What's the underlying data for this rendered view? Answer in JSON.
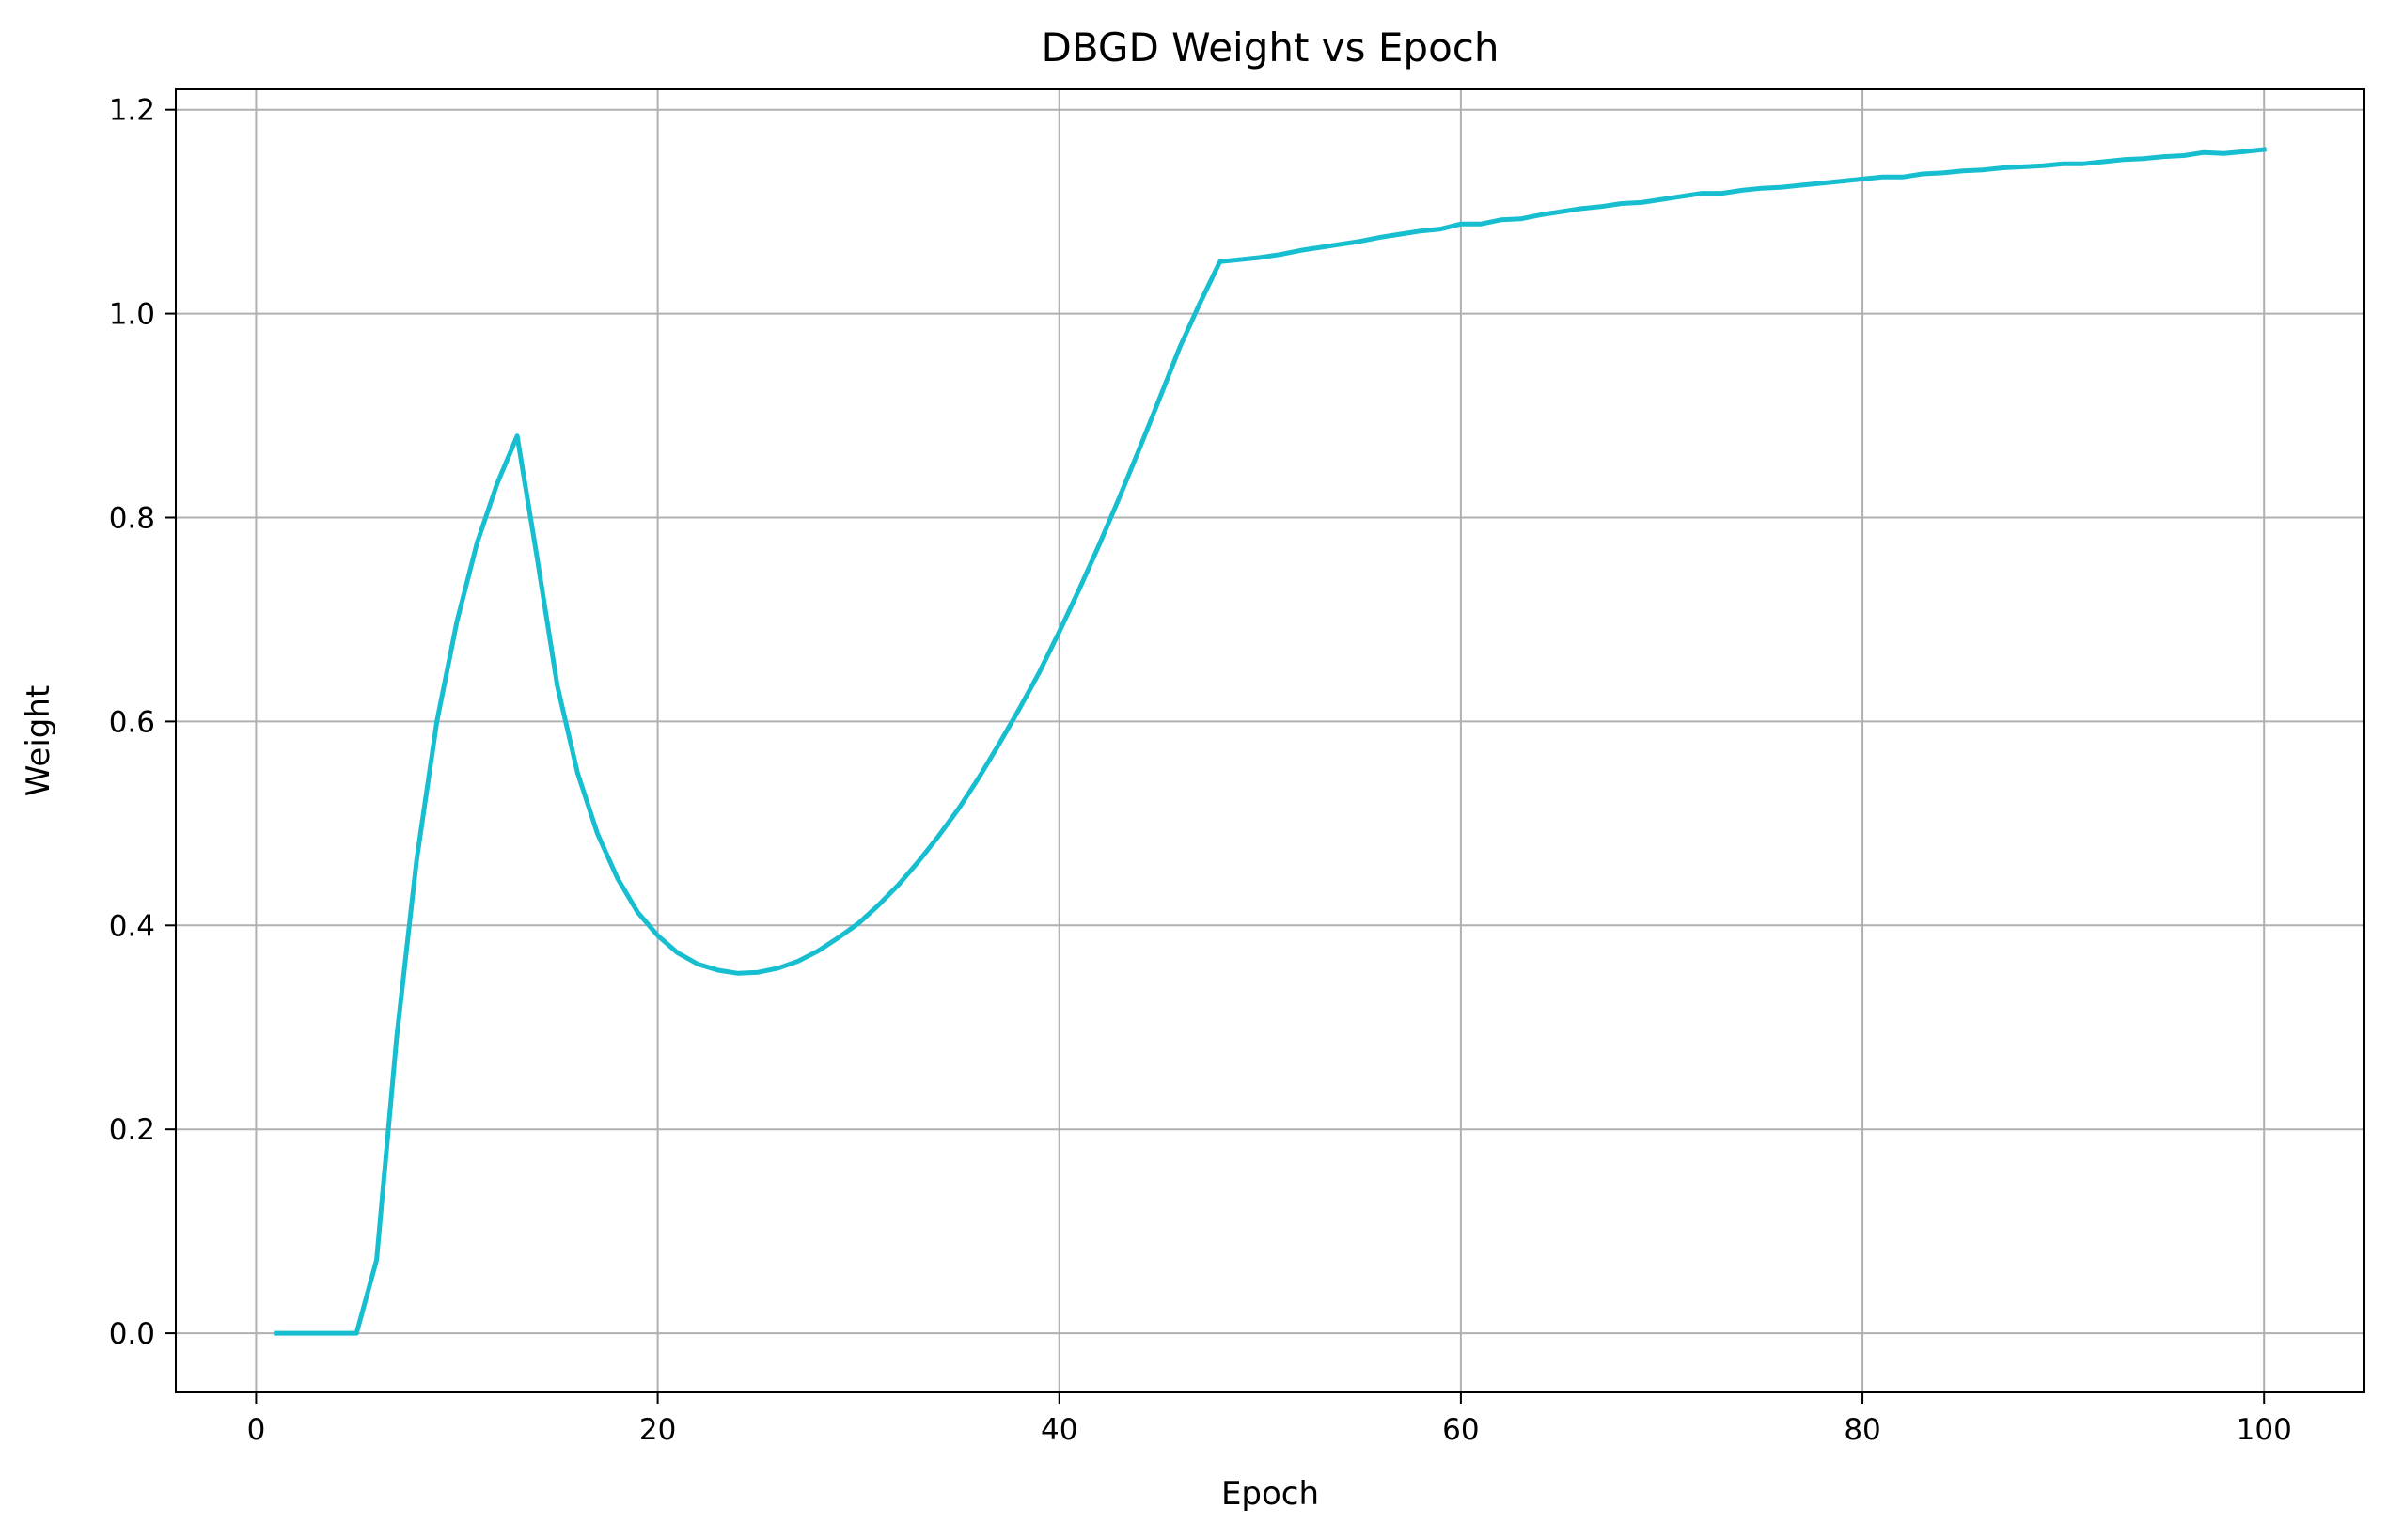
{
  "chart_data": {
    "type": "line",
    "title": "DBGD Weight vs Epoch",
    "xlabel": "Epoch",
    "ylabel": "Weight",
    "xlim": [
      -4,
      105
    ],
    "ylim": [
      -0.058,
      1.22
    ],
    "xticks": [
      0,
      20,
      40,
      60,
      80,
      100
    ],
    "yticks": [
      0.0,
      0.2,
      0.4,
      0.6,
      0.8,
      1.0,
      1.2
    ],
    "ytick_labels": [
      "0.0",
      "0.2",
      "0.4",
      "0.6",
      "0.8",
      "1.0",
      "1.2"
    ],
    "grid": true,
    "colors": {
      "line": "#17becf",
      "grid": "#b0b0b0",
      "axes": "#000000"
    },
    "series": [
      {
        "x": [
          1,
          2,
          3,
          4,
          5,
          6,
          7,
          8,
          9,
          10,
          11,
          12,
          13,
          14,
          15,
          16,
          17,
          18,
          19,
          20,
          21,
          22,
          23,
          24,
          25,
          26,
          27,
          28,
          29,
          30,
          31,
          32,
          33,
          34,
          35,
          36,
          37,
          38,
          39,
          40,
          41,
          42,
          43,
          44,
          45,
          46,
          47,
          48,
          49,
          50,
          51,
          52,
          53,
          54,
          55,
          56,
          57,
          58,
          59,
          60,
          61,
          62,
          63,
          64,
          65,
          66,
          67,
          68,
          69,
          70,
          71,
          72,
          73,
          74,
          75,
          76,
          77,
          78,
          79,
          80,
          81,
          82,
          83,
          84,
          85,
          86,
          87,
          88,
          89,
          90,
          91,
          92,
          93,
          94,
          95,
          96,
          97,
          98,
          99,
          100
        ],
        "y": [
          0.0,
          0.0,
          0.0,
          0.0,
          0.0,
          0.072,
          0.29,
          0.465,
          0.6,
          0.698,
          0.775,
          0.833,
          0.88,
          0.76,
          0.635,
          0.55,
          0.49,
          0.446,
          0.413,
          0.39,
          0.373,
          0.362,
          0.356,
          0.353,
          0.354,
          0.358,
          0.365,
          0.375,
          0.388,
          0.402,
          0.42,
          0.44,
          0.463,
          0.488,
          0.515,
          0.545,
          0.578,
          0.612,
          0.648,
          0.688,
          0.73,
          0.774,
          0.82,
          0.868,
          0.917,
          0.967,
          1.01,
          1.051,
          1.053,
          1.055,
          1.058,
          1.062,
          1.065,
          1.068,
          1.071,
          1.075,
          1.078,
          1.081,
          1.083,
          1.088,
          1.088,
          1.092,
          1.093,
          1.097,
          1.1,
          1.103,
          1.105,
          1.108,
          1.109,
          1.112,
          1.115,
          1.118,
          1.118,
          1.121,
          1.123,
          1.124,
          1.126,
          1.128,
          1.13,
          1.132,
          1.134,
          1.134,
          1.137,
          1.138,
          1.14,
          1.141,
          1.143,
          1.144,
          1.145,
          1.147,
          1.147,
          1.149,
          1.151,
          1.152,
          1.154,
          1.155,
          1.158,
          1.157,
          1.159,
          1.161
        ]
      }
    ]
  }
}
